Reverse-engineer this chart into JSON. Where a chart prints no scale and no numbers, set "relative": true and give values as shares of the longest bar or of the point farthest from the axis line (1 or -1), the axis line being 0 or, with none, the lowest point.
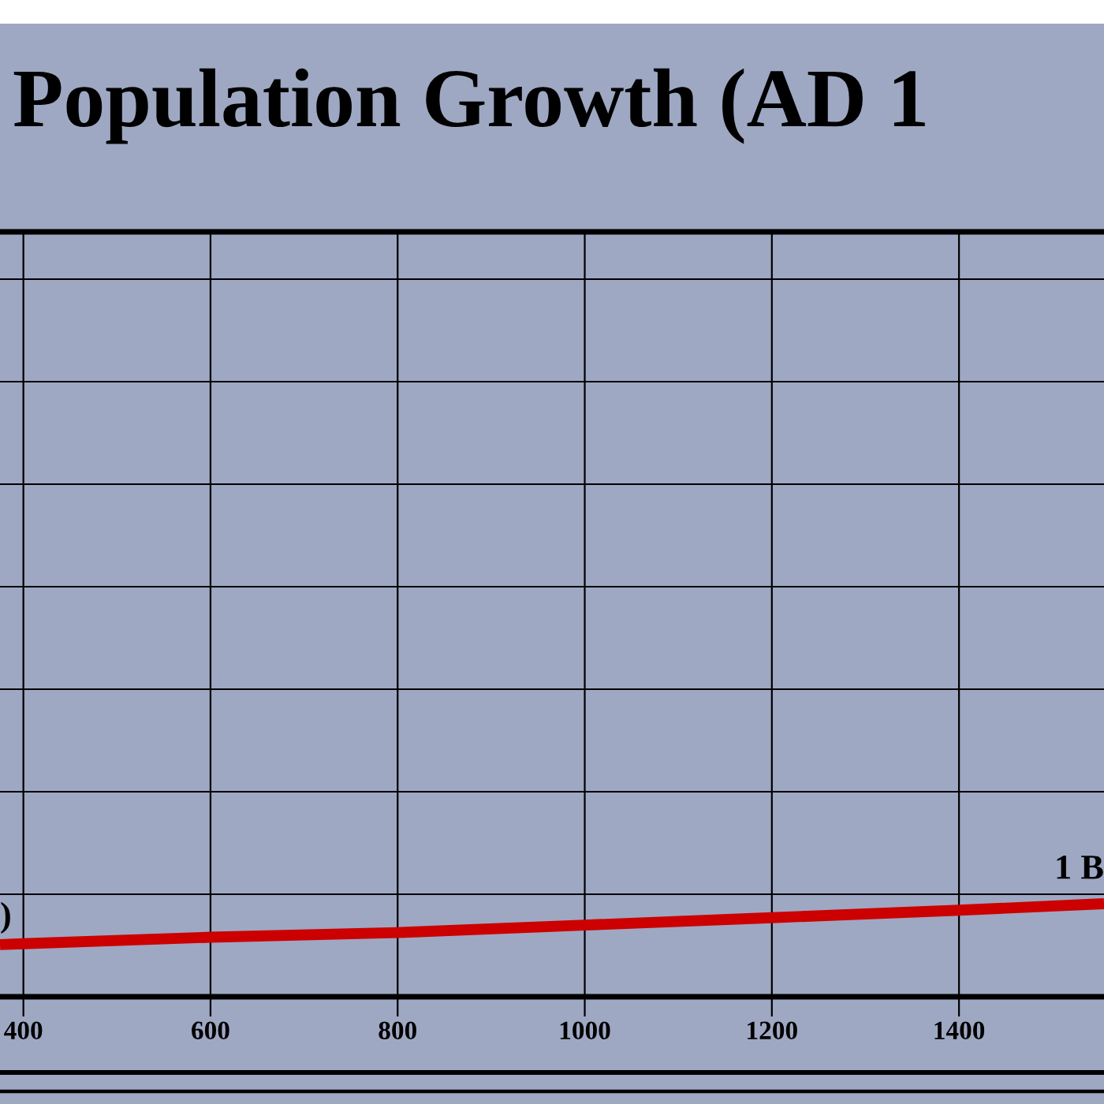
{
  "chart_data": {
    "type": "line",
    "title": "Population Growth (AD 1",
    "x": [
      375,
      400,
      600,
      800,
      1000,
      1200,
      1400,
      1555
    ],
    "values": [
      0.56,
      0.57,
      0.64,
      0.69,
      0.77,
      0.85,
      0.93,
      1.0
    ],
    "color": "#cc0000",
    "relative": true,
    "xlim": [
      375,
      1555
    ],
    "xticks": [
      400,
      600,
      800,
      1000,
      1200,
      1400
    ],
    "grid": true,
    "tick_labels": "x",
    "line_style": "solid",
    "annotations": [
      {
        "text": ")",
        "x": 375,
        "y": 0.56
      },
      {
        "text": "1 B",
        "x": 1555,
        "y": 1.0
      }
    ]
  }
}
